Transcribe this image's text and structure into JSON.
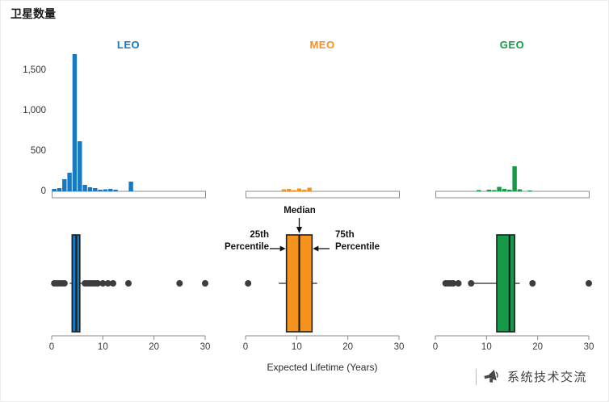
{
  "watermark": {
    "text": "系统技术交流"
  },
  "chart_data": {
    "type": "histogram+boxplot",
    "ylabel": "卫星数量",
    "xlabel": "Expected Lifetime (Years)",
    "x_range": [
      0,
      30
    ],
    "x_ticks": [
      0,
      10,
      20,
      30
    ],
    "x_tick_labels": [
      "0",
      "10",
      "20",
      "30"
    ],
    "y_ticks": [
      0,
      500,
      1000,
      1500
    ],
    "y_tick_labels": [
      "0",
      "500",
      "1,000",
      "1,500"
    ],
    "grid": false,
    "annotations": {
      "median": "Median",
      "p25": "25th Percentile",
      "p75": "75th Percentile",
      "target_panel": "MEO"
    },
    "panels": [
      {
        "name": "LEO",
        "color": "#1779c2",
        "histogram": {
          "bin_width": 1,
          "bins": [
            {
              "x": 0,
              "count": 30
            },
            {
              "x": 1,
              "count": 40
            },
            {
              "x": 2,
              "count": 150
            },
            {
              "x": 3,
              "count": 230
            },
            {
              "x": 4,
              "count": 1700
            },
            {
              "x": 5,
              "count": 620
            },
            {
              "x": 6,
              "count": 80
            },
            {
              "x": 7,
              "count": 50
            },
            {
              "x": 8,
              "count": 40
            },
            {
              "x": 9,
              "count": 20
            },
            {
              "x": 10,
              "count": 25
            },
            {
              "x": 11,
              "count": 30
            },
            {
              "x": 12,
              "count": 20
            },
            {
              "x": 15,
              "count": 120
            }
          ]
        },
        "boxplot": {
          "whisker_low": 3.5,
          "q1": 4,
          "median": 4.8,
          "q3": 5.5,
          "whisker_high": 6,
          "outliers": [
            0.5,
            1,
            1.5,
            2,
            2.5,
            6.5,
            7,
            7.5,
            8,
            8.5,
            9,
            10,
            11,
            12,
            15,
            25,
            30
          ]
        }
      },
      {
        "name": "MEO",
        "color": "#f6921e",
        "histogram": {
          "bin_width": 1,
          "bins": [
            {
              "x": 7,
              "count": 25
            },
            {
              "x": 8,
              "count": 30
            },
            {
              "x": 9,
              "count": 15
            },
            {
              "x": 10,
              "count": 35
            },
            {
              "x": 11,
              "count": 20
            },
            {
              "x": 12,
              "count": 45
            }
          ]
        },
        "boxplot": {
          "whisker_low": 6.5,
          "q1": 8,
          "median": 10.5,
          "q3": 13,
          "whisker_high": 14,
          "outliers": [
            0.5
          ]
        }
      },
      {
        "name": "GEO",
        "color": "#169a49",
        "histogram": {
          "bin_width": 1,
          "bins": [
            {
              "x": 8,
              "count": 15
            },
            {
              "x": 10,
              "count": 20
            },
            {
              "x": 11,
              "count": 15
            },
            {
              "x": 12,
              "count": 55
            },
            {
              "x": 13,
              "count": 30
            },
            {
              "x": 14,
              "count": 20
            },
            {
              "x": 15,
              "count": 310
            },
            {
              "x": 16,
              "count": 25
            },
            {
              "x": 18,
              "count": 10
            }
          ]
        },
        "boxplot": {
          "whisker_low": 7.5,
          "q1": 12,
          "median": 14.5,
          "q3": 15.5,
          "whisker_high": 16.5,
          "outliers": [
            2,
            2.5,
            3,
            3.5,
            4.5,
            7,
            19,
            30
          ]
        }
      }
    ]
  }
}
